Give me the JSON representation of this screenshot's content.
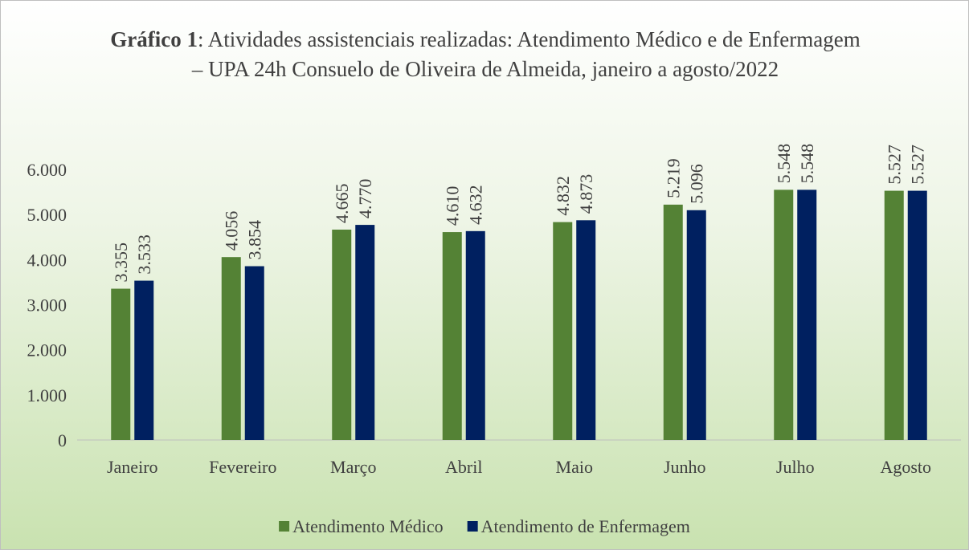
{
  "chart_data": {
    "type": "bar",
    "title": "Gráfico 1: Atividades assistenciais realizadas: Atendimento Médico e de Enfermagem – UPA 24h Consuelo de Oliveira de Almeida, janeiro a agosto/2022",
    "categories": [
      "Janeiro",
      "Fevereiro",
      "Março",
      "Abril",
      "Maio",
      "Junho",
      "Julho",
      "Agosto"
    ],
    "series": [
      {
        "name": "Atendimento Médico",
        "color": "#548235",
        "values": [
          3355,
          4056,
          4665,
          4610,
          4832,
          5219,
          5548,
          5527
        ],
        "value_labels": [
          "3.355",
          "4.056",
          "4.665",
          "4.610",
          "4.832",
          "5.219",
          "5.548",
          "5.527"
        ]
      },
      {
        "name": "Atendimento de Enfermagem",
        "color": "#002060",
        "values": [
          3533,
          3854,
          4770,
          4632,
          4873,
          5096,
          5548,
          5527
        ],
        "value_labels": [
          "3.533",
          "3.854",
          "4.770",
          "4.632",
          "4.873",
          "5.096",
          "5.548",
          "5.527"
        ]
      }
    ],
    "ylim": [
      0,
      6000
    ],
    "yticks": [
      0,
      {
        "value": 1000,
        "label": "1.000"
      },
      {
        "value": 2000,
        "label": "2.000"
      },
      {
        "value": 3000,
        "label": "3.000"
      },
      {
        "value": 4000,
        "label": "4.000"
      },
      {
        "value": 5000,
        "label": "5.000"
      },
      {
        "value": 6000,
        "label": "6.000"
      }
    ],
    "legend": "bottom"
  }
}
